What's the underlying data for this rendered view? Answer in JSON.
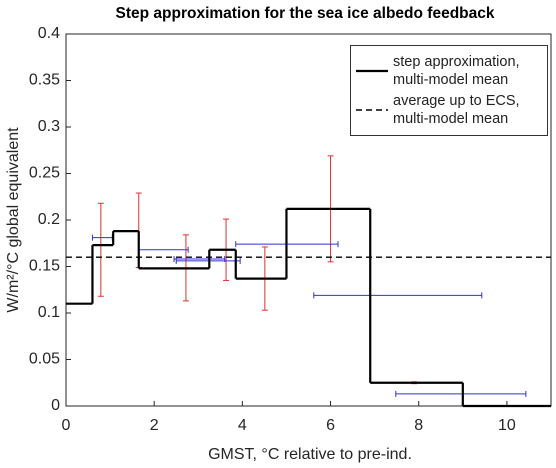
{
  "chart_data": {
    "type": "step",
    "title": "Step approximation for the sea ice albedo feedback",
    "xlabel": "GMST, °C relative to pre-ind.",
    "ylabel": "W/m²/°C global equivalent",
    "xlim": [
      0,
      11
    ],
    "xticks": [
      0,
      2,
      4,
      6,
      8,
      10
    ],
    "ylim": [
      0,
      0.4
    ],
    "yticks": [
      0,
      0.05,
      0.1,
      0.15,
      0.2,
      0.25,
      0.3,
      0.35,
      0.4
    ],
    "legend": "upper right",
    "series": [
      {
        "name": "step approximation, multi-model mean",
        "color": "#000000",
        "style": "solid",
        "x": [
          0,
          0.6,
          1.07,
          1.65,
          3.25,
          3.85,
          5.0,
          6.9,
          9.0
        ],
        "values": [
          0.11,
          0.173,
          0.188,
          0.148,
          0.168,
          0.137,
          0.212,
          0.025,
          0
        ]
      },
      {
        "name": "average up to ECS, multi-model mean",
        "color": "#000000",
        "style": "dashed",
        "values": [
          0.16
        ]
      }
    ],
    "y_error_bars": {
      "color": "#e03030",
      "x": [
        0.79,
        1.65,
        2.72,
        3.63,
        4.51,
        6.0,
        7.9
      ],
      "low": [
        0.118,
        0.149,
        0.113,
        0.135,
        0.103,
        0.155,
        0.024
      ],
      "high": [
        0.218,
        0.229,
        0.184,
        0.201,
        0.171,
        0.269,
        0.026
      ]
    },
    "x_error_bars": {
      "color": "#3030d0",
      "y": [
        0.181,
        0.168,
        0.158,
        0.156,
        0.174,
        0.119,
        0.013
      ],
      "low": [
        0.6,
        1.65,
        2.45,
        2.5,
        3.85,
        5.62,
        7.48
      ],
      "high": [
        1.05,
        2.77,
        3.6,
        3.95,
        6.17,
        9.43,
        10.43
      ]
    }
  }
}
